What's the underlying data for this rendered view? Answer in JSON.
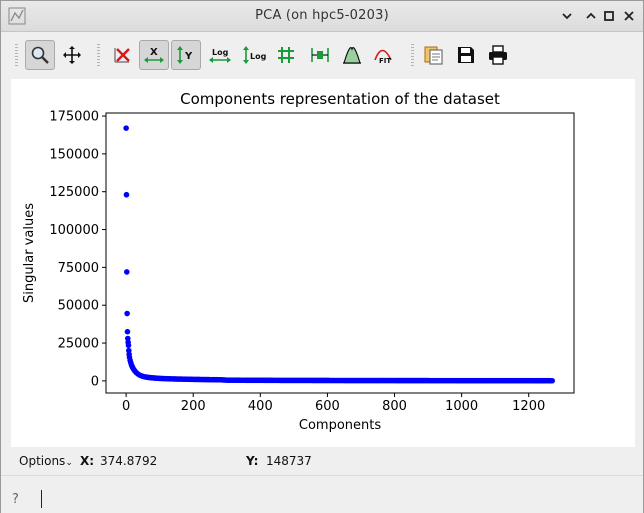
{
  "window": {
    "title": "PCA (on hpc5-0203)"
  },
  "toolbar": {
    "buttons": [
      {
        "name": "zoom-button",
        "icon": "magnifier-icon",
        "pressed": true
      },
      {
        "name": "pan-button",
        "icon": "move-arrows-icon",
        "pressed": false
      },
      {
        "name": "reset-zoom-button",
        "icon": "red-x-icon",
        "pressed": false
      },
      {
        "name": "x-autoscale-button",
        "icon": "x-axis-icon",
        "pressed": true,
        "glyph": "X"
      },
      {
        "name": "y-autoscale-button",
        "icon": "y-axis-icon",
        "pressed": true,
        "glyph": "Y"
      },
      {
        "name": "x-log-button",
        "icon": "x-log-icon",
        "pressed": false,
        "glyph": "Log"
      },
      {
        "name": "y-log-button",
        "icon": "y-log-icon",
        "pressed": false,
        "glyph": "Log"
      },
      {
        "name": "grid-button",
        "icon": "grid-icon",
        "pressed": false
      },
      {
        "name": "curve-style-button",
        "icon": "curve-style-icon",
        "pressed": false
      },
      {
        "name": "roi-button",
        "icon": "roi-peak-icon",
        "pressed": false
      },
      {
        "name": "fit-button",
        "icon": "fit-icon",
        "pressed": false,
        "glyph": "FIT"
      },
      {
        "name": "copy-button",
        "icon": "copy-clipboard-icon",
        "pressed": false
      },
      {
        "name": "save-button",
        "icon": "floppy-disk-icon",
        "pressed": false
      },
      {
        "name": "print-button",
        "icon": "printer-icon",
        "pressed": false
      }
    ]
  },
  "status": {
    "options_label": "Options",
    "x_label": "X:",
    "x_value": "374.8792",
    "y_label": "Y:",
    "y_value": "148737"
  },
  "chart_data": {
    "type": "scatter",
    "title": "Components representation of the dataset",
    "xlabel": "Components",
    "ylabel": "Singular values",
    "xlim": [
      -60,
      1335
    ],
    "ylim": [
      -8000,
      177000
    ],
    "xticks": [
      0,
      200,
      400,
      600,
      800,
      1000,
      1200
    ],
    "yticks": [
      0,
      25000,
      50000,
      75000,
      100000,
      125000,
      150000,
      175000
    ],
    "grid": false,
    "series": [
      {
        "color": "#0000ff",
        "points": [
          [
            0,
            167000
          ],
          [
            1,
            123000
          ],
          [
            2,
            72000
          ],
          [
            3,
            44500
          ],
          [
            4,
            32500
          ],
          [
            5,
            28000
          ],
          [
            6,
            25500
          ],
          [
            7,
            23500
          ],
          [
            8,
            20000
          ],
          [
            9,
            17500
          ],
          [
            10,
            15500
          ],
          [
            12,
            13500
          ],
          [
            14,
            12000
          ],
          [
            16,
            10500
          ],
          [
            18,
            9500
          ],
          [
            20,
            8500
          ],
          [
            23,
            7500
          ],
          [
            26,
            6500
          ],
          [
            30,
            5500
          ],
          [
            35,
            4600
          ],
          [
            40,
            3900
          ],
          [
            45,
            3400
          ],
          [
            50,
            3000
          ],
          [
            55,
            2700
          ],
          [
            60,
            2500
          ],
          [
            70,
            2200
          ],
          [
            80,
            2000
          ],
          [
            90,
            1800
          ],
          [
            100,
            1650
          ],
          [
            120,
            1450
          ],
          [
            140,
            1300
          ],
          [
            160,
            1200
          ],
          [
            180,
            1100
          ],
          [
            200,
            1000
          ],
          [
            230,
            900
          ],
          [
            260,
            800
          ],
          [
            280,
            750
          ],
          [
            300,
            500
          ],
          [
            350,
            420
          ],
          [
            400,
            380
          ],
          [
            450,
            340
          ],
          [
            500,
            310
          ],
          [
            550,
            290
          ],
          [
            600,
            270
          ],
          [
            650,
            250
          ],
          [
            700,
            235
          ],
          [
            750,
            220
          ],
          [
            800,
            205
          ],
          [
            850,
            195
          ],
          [
            900,
            185
          ],
          [
            950,
            175
          ],
          [
            1000,
            165
          ],
          [
            1050,
            155
          ],
          [
            1100,
            145
          ],
          [
            1150,
            135
          ],
          [
            1200,
            125
          ],
          [
            1250,
            110
          ],
          [
            1270,
            100
          ]
        ]
      }
    ]
  }
}
